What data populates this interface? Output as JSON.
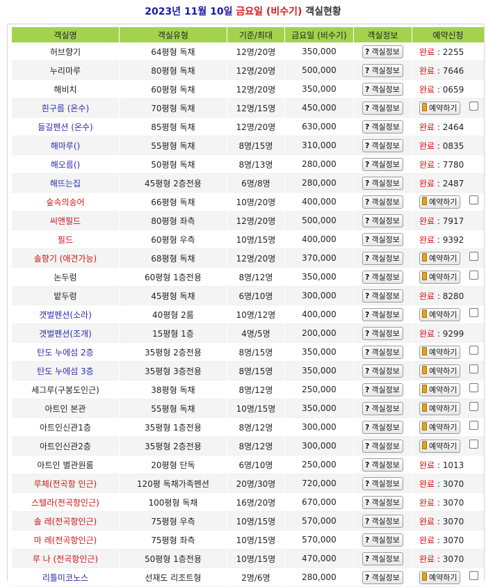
{
  "title": {
    "date": "2023년 11월 10일",
    "day": "금요일 (비수기)",
    "suffix": "객실현황"
  },
  "headers": [
    "객실명",
    "객실유형",
    "기준/최대",
    "금요일 (비수기)",
    "객실정보",
    "예약신청"
  ],
  "info_label": "객실정보",
  "book_label": "예약하기",
  "done_label": "완료",
  "colors": {
    "header_bg": "#a3d34d",
    "done": "#d61010",
    "name_blue": "#2b2bb0",
    "name_red": "#cc1515"
  },
  "rows": [
    {
      "name": "허브향기",
      "name_color": "blk",
      "type": "64평형 독채",
      "cap": "12명/20명",
      "price": "350,000",
      "status": "done",
      "code": "2255"
    },
    {
      "name": "누리마루",
      "name_color": "blk",
      "type": "80평형 독채",
      "cap": "12명/20명",
      "price": "500,000",
      "status": "done",
      "code": "7646"
    },
    {
      "name": "해비치",
      "name_color": "blk",
      "type": "60평형 독채",
      "cap": "12명/20명",
      "price": "350,000",
      "status": "done",
      "code": "0659"
    },
    {
      "name": "흰구름 (온수)",
      "name_color": "blu",
      "type": "70평형 독채",
      "cap": "12명/15명",
      "price": "450,000",
      "status": "book",
      "code": ""
    },
    {
      "name": "들길펜션 (온수)",
      "name_color": "blu",
      "type": "85평형 독채",
      "cap": "12명/20명",
      "price": "630,000",
      "status": "done",
      "code": "2464"
    },
    {
      "name": "해마루()",
      "name_color": "blu",
      "type": "55평형 독채",
      "cap": "8명/15명",
      "price": "310,000",
      "status": "done",
      "code": "0835"
    },
    {
      "name": "해오름()",
      "name_color": "blu",
      "type": "50평형 독채",
      "cap": "8명/13명",
      "price": "280,000",
      "status": "done",
      "code": "7780"
    },
    {
      "name": "해뜨는집",
      "name_color": "blu",
      "type": "45평형 2층전용",
      "cap": "6명/8명",
      "price": "280,000",
      "status": "done",
      "code": "2487"
    },
    {
      "name": "숲속의송어",
      "name_color": "red",
      "type": "66평형 독채",
      "cap": "10명/20명",
      "price": "400,000",
      "status": "book",
      "code": ""
    },
    {
      "name": "씨앤필드",
      "name_color": "red",
      "type": "80평형 좌측",
      "cap": "12명/20명",
      "price": "500,000",
      "status": "done",
      "code": "7917"
    },
    {
      "name": "필드",
      "name_color": "red",
      "type": "60평형 우측",
      "cap": "10명/15명",
      "price": "400,000",
      "status": "done",
      "code": "9392"
    },
    {
      "name": "솔향기 (애견가능)",
      "name_color": "red",
      "type": "68평형 독채",
      "cap": "12명/20명",
      "price": "370,000",
      "status": "book",
      "code": ""
    },
    {
      "name": "논두렁",
      "name_color": "blk",
      "type": "60평형 1층전용",
      "cap": "8명/12명",
      "price": "350,000",
      "status": "book",
      "code": ""
    },
    {
      "name": "밭두렁",
      "name_color": "blk",
      "type": "45평형 독채",
      "cap": "6명/10명",
      "price": "300,000",
      "status": "done",
      "code": "8280"
    },
    {
      "name": "갯벌펜션(소라)",
      "name_color": "blu",
      "type": "40평형 2룸",
      "cap": "10명/12명",
      "price": "400,000",
      "status": "book",
      "code": ""
    },
    {
      "name": "갯벌펜션(조개)",
      "name_color": "blu",
      "type": "15평형 1층",
      "cap": "4명/5명",
      "price": "200,000",
      "status": "done",
      "code": "9299"
    },
    {
      "name": "탄도 누에섬 2층",
      "name_color": "blu",
      "type": "35평형 2층전용",
      "cap": "8명/15명",
      "price": "350,000",
      "status": "book",
      "code": ""
    },
    {
      "name": "탄도 누에섬 3층",
      "name_color": "blu",
      "type": "35평형 3층전용",
      "cap": "8명/15명",
      "price": "350,000",
      "status": "book",
      "code": ""
    },
    {
      "name": "세그루(구봉도인근)",
      "name_color": "blk",
      "type": "38평형 독채",
      "cap": "8명/12명",
      "price": "250,000",
      "status": "book",
      "code": ""
    },
    {
      "name": "아트인 본관",
      "name_color": "blk",
      "type": "55평형 독채",
      "cap": "10명/15명",
      "price": "350,000",
      "status": "book",
      "code": ""
    },
    {
      "name": "아트인신관1층",
      "name_color": "blk",
      "type": "35평형 1층전용",
      "cap": "8명/12명",
      "price": "300,000",
      "status": "book",
      "code": ""
    },
    {
      "name": "아트인신관2층",
      "name_color": "blk",
      "type": "35평형 2층전용",
      "cap": "8명/12명",
      "price": "300,000",
      "status": "book",
      "code": ""
    },
    {
      "name": "아트인 별관원룸",
      "name_color": "blk",
      "type": "20평형 단독",
      "cap": "6명/10명",
      "price": "250,000",
      "status": "done",
      "code": "1013"
    },
    {
      "name": "루체(전곡항 인근)",
      "name_color": "red",
      "type": "120평 독채가족펜션",
      "cap": "20명/30명",
      "price": "720,000",
      "status": "done",
      "code": "3070"
    },
    {
      "name": "스텔라(전곡항인근)",
      "name_color": "red",
      "type": "100평형 독채",
      "cap": "16명/20명",
      "price": "670,000",
      "status": "done",
      "code": "3070"
    },
    {
      "name": "솔 레(전곡항인근)",
      "name_color": "red",
      "type": "75평형 우측",
      "cap": "10명/15명",
      "price": "570,000",
      "status": "done",
      "code": "3070"
    },
    {
      "name": "마 레(전곡항인근)",
      "name_color": "red",
      "type": "75평형 좌측",
      "cap": "10명/15명",
      "price": "570,000",
      "status": "done",
      "code": "3070"
    },
    {
      "name": "루 나 (전곡항인근)",
      "name_color": "red",
      "type": "50평형 1층전용",
      "cap": "10명/15명",
      "price": "470,000",
      "status": "done",
      "code": "3070"
    },
    {
      "name": "리틀미코노스",
      "name_color": "blu",
      "type": "선재도 리조트형",
      "cap": "2명/6명",
      "price": "280,000",
      "status": "book",
      "code": ""
    }
  ]
}
